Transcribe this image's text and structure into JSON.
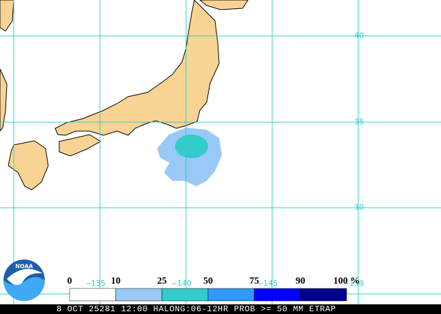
{
  "map": {
    "lat_labels": [
      "40",
      "35",
      "30"
    ],
    "lon_labels": [
      "135",
      "140",
      "145",
      "150"
    ]
  },
  "legend": {
    "labels": [
      "0",
      "10",
      "25",
      "50",
      "75",
      "90",
      "100 %"
    ],
    "colors": [
      "#ffffff",
      "#99c9f6",
      "#33cccc",
      "#3399ff",
      "#0000ff",
      "#00008b"
    ]
  },
  "logo": "NOAA",
  "footer": "8 OCT 25281 12:00 HALONG:06-12HR PROB >= 50 MM ETRAP"
}
